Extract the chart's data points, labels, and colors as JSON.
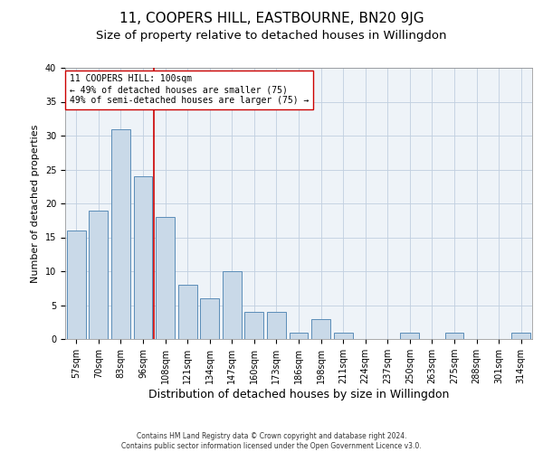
{
  "title": "11, COOPERS HILL, EASTBOURNE, BN20 9JG",
  "subtitle": "Size of property relative to detached houses in Willingdon",
  "xlabel": "Distribution of detached houses by size in Willingdon",
  "ylabel": "Number of detached properties",
  "categories": [
    "57sqm",
    "70sqm",
    "83sqm",
    "96sqm",
    "108sqm",
    "121sqm",
    "134sqm",
    "147sqm",
    "160sqm",
    "173sqm",
    "186sqm",
    "198sqm",
    "211sqm",
    "224sqm",
    "237sqm",
    "250sqm",
    "263sqm",
    "275sqm",
    "288sqm",
    "301sqm",
    "314sqm"
  ],
  "values": [
    16,
    19,
    31,
    24,
    18,
    8,
    6,
    10,
    4,
    4,
    1,
    3,
    1,
    0,
    0,
    1,
    0,
    1,
    0,
    0,
    1
  ],
  "bar_color": "#c9d9e8",
  "bar_edge_color": "#5b8db8",
  "vline_color": "#cc0000",
  "vline_x": 3.5,
  "annotation_text": "11 COOPERS HILL: 100sqm\n← 49% of detached houses are smaller (75)\n49% of semi-detached houses are larger (75) →",
  "annotation_box_color": "#ffffff",
  "annotation_box_edge": "#cc0000",
  "ylim": [
    0,
    40
  ],
  "yticks": [
    0,
    5,
    10,
    15,
    20,
    25,
    30,
    35,
    40
  ],
  "grid_color": "#c0cfe0",
  "background_color": "#eef3f8",
  "footer_line1": "Contains HM Land Registry data © Crown copyright and database right 2024.",
  "footer_line2": "Contains public sector information licensed under the Open Government Licence v3.0.",
  "title_fontsize": 11,
  "subtitle_fontsize": 9.5,
  "tick_fontsize": 7,
  "ylabel_fontsize": 8,
  "xlabel_fontsize": 9,
  "annotation_fontsize": 7,
  "footer_fontsize": 5.5
}
